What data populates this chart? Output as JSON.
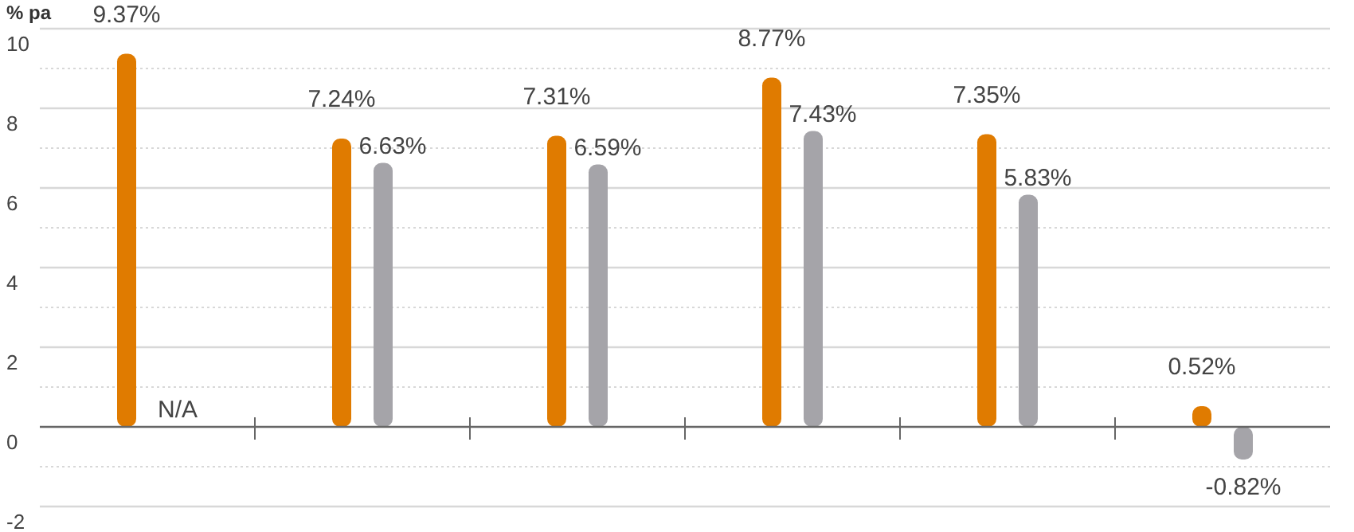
{
  "chart_data": {
    "type": "bar",
    "ylabel": "% pa",
    "categories": [
      null,
      null,
      null,
      null,
      null,
      null
    ],
    "series": [
      {
        "color": "#e07b00",
        "values": [
          9.37,
          7.24,
          7.31,
          8.77,
          7.35,
          0.52
        ],
        "value_labels": [
          "9.37%",
          "7.24%",
          "7.31%",
          "8.77%",
          "7.35%",
          "0.52%"
        ]
      },
      {
        "color": "#a5a4a9",
        "values": [
          null,
          6.63,
          6.59,
          7.43,
          5.83,
          -0.82
        ],
        "value_labels": [
          "N/A",
          "6.63%",
          "6.59%",
          "7.43%",
          "5.83%",
          "-0.82%"
        ]
      }
    ],
    "ylim": [
      -2,
      10
    ],
    "yticks": [
      -2,
      {
        "value": -1,
        "label": null
      },
      0,
      {
        "value": 1,
        "label": null
      },
      2,
      {
        "value": 3,
        "label": null
      },
      4,
      {
        "value": 5,
        "label": null
      },
      6,
      {
        "value": 7,
        "label": null
      },
      8,
      {
        "value": 9,
        "label": null
      },
      10
    ],
    "grid": "y"
  }
}
